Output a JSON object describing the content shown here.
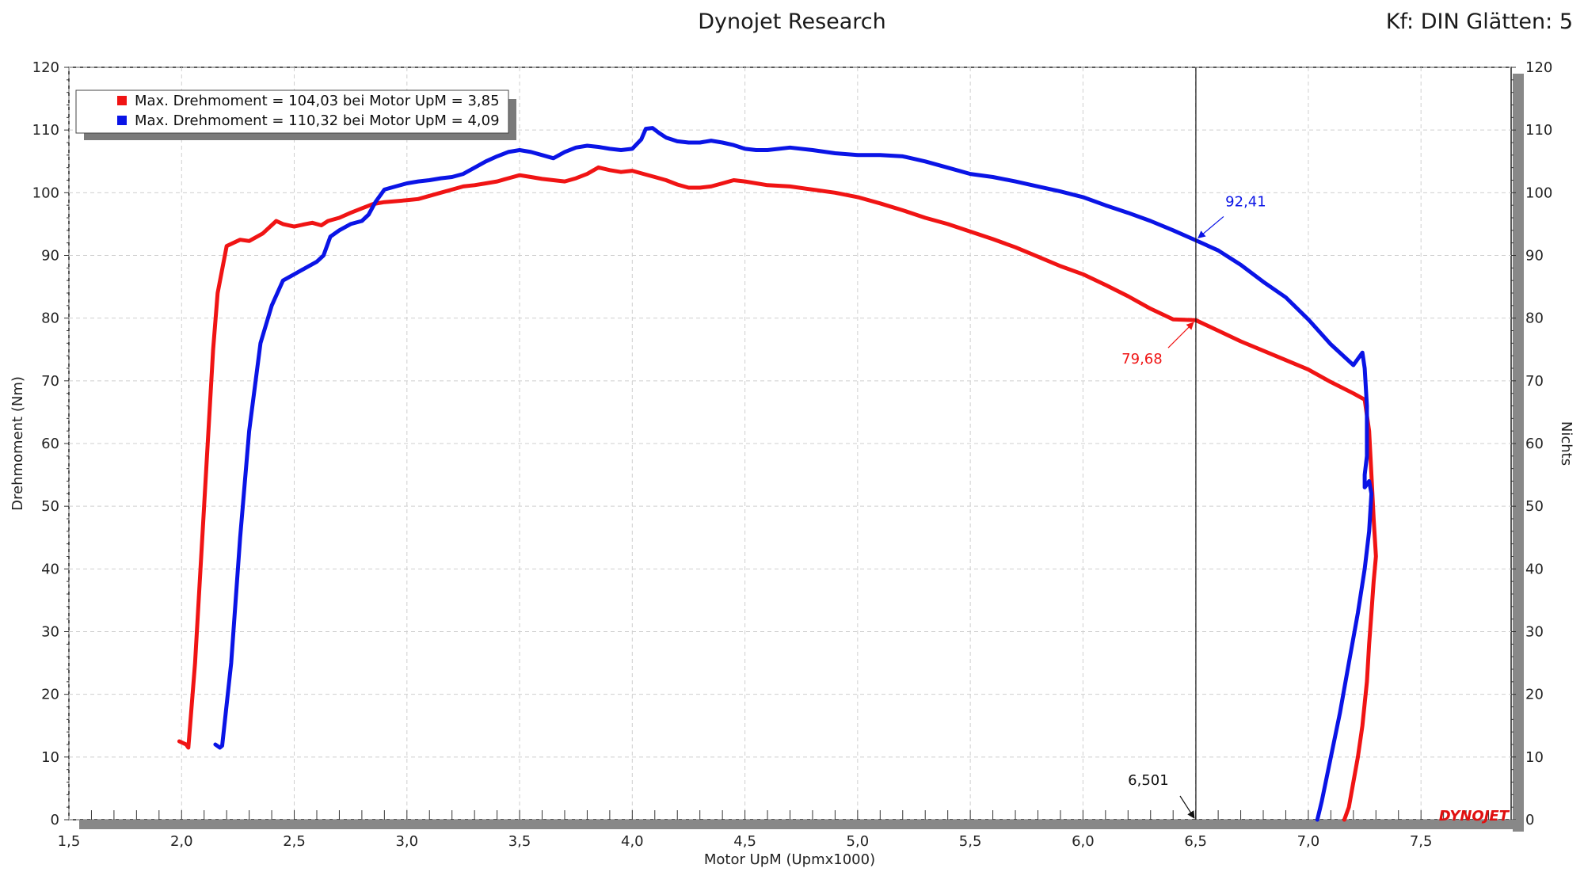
{
  "header": {
    "title": "Dynojet Research",
    "right_text": "Kf: DIN Glätten: 5"
  },
  "watermark": "DYNOJET",
  "colors": {
    "red": "#f01414",
    "blue": "#0a14e6",
    "grid": "#cfcfcf",
    "frame": "#222222"
  },
  "chart_data": {
    "type": "line",
    "title": "Dynojet Research",
    "xlabel": "Motor UpM (Upmx1000)",
    "ylabel": "Drehmoment (Nm)",
    "y2label": "Nichts",
    "xlim": [
      1.5,
      7.9
    ],
    "ylim": [
      0,
      120
    ],
    "xticks": [
      "1,5",
      "2,0",
      "2,5",
      "3,0",
      "3,5",
      "4,0",
      "4,5",
      "5,0",
      "5,5",
      "6,0",
      "6,5",
      "7,0",
      "7,5"
    ],
    "yticks": [
      "0",
      "10",
      "20",
      "30",
      "40",
      "50",
      "60",
      "70",
      "80",
      "90",
      "100",
      "110",
      "120"
    ],
    "grid": true,
    "legend_position": "top-left",
    "series": [
      {
        "name": "Max. Drehmoment = 104,03 bei Motor UpM = 3,85",
        "color": "#f01414",
        "x": [
          1.99,
          2.02,
          2.03,
          2.06,
          2.1,
          2.14,
          2.16,
          2.2,
          2.26,
          2.3,
          2.36,
          2.42,
          2.45,
          2.5,
          2.55,
          2.58,
          2.62,
          2.65,
          2.7,
          2.75,
          2.8,
          2.85,
          2.9,
          3.0,
          3.05,
          3.1,
          3.15,
          3.2,
          3.25,
          3.3,
          3.35,
          3.4,
          3.45,
          3.5,
          3.55,
          3.6,
          3.65,
          3.7,
          3.75,
          3.8,
          3.85,
          3.9,
          3.95,
          4.0,
          4.05,
          4.1,
          4.15,
          4.2,
          4.25,
          4.3,
          4.35,
          4.4,
          4.45,
          4.5,
          4.6,
          4.7,
          4.8,
          4.9,
          5.0,
          5.1,
          5.2,
          5.3,
          5.4,
          5.5,
          5.6,
          5.7,
          5.8,
          5.9,
          6.0,
          6.1,
          6.2,
          6.3,
          6.4,
          6.5,
          6.6,
          6.7,
          6.8,
          6.9,
          7.0,
          7.1,
          7.2,
          7.25,
          7.27,
          7.28,
          7.29,
          7.3,
          7.29,
          7.28,
          7.27,
          7.26,
          7.24,
          7.22,
          7.2,
          7.18,
          7.16
        ],
        "y": [
          12.5,
          12.0,
          11.5,
          25,
          50,
          75,
          84,
          91.5,
          92.5,
          92.3,
          93.5,
          95.5,
          95.0,
          94.6,
          95.0,
          95.2,
          94.8,
          95.5,
          96.0,
          96.8,
          97.5,
          98.2,
          98.5,
          98.8,
          99.0,
          99.5,
          100.0,
          100.5,
          101.0,
          101.2,
          101.5,
          101.8,
          102.3,
          102.8,
          102.5,
          102.2,
          102.0,
          101.8,
          102.3,
          103.0,
          104.03,
          103.6,
          103.3,
          103.5,
          103.0,
          102.5,
          102.0,
          101.3,
          100.8,
          100.8,
          101.0,
          101.5,
          102.0,
          101.8,
          101.2,
          101.0,
          100.5,
          100.0,
          99.3,
          98.3,
          97.2,
          96.0,
          95.0,
          93.8,
          92.6,
          91.3,
          89.8,
          88.3,
          87.0,
          85.3,
          83.5,
          81.5,
          79.8,
          79.68,
          78.0,
          76.3,
          74.8,
          73.3,
          71.8,
          69.8,
          68.0,
          67.0,
          62.0,
          55.0,
          48.0,
          42.0,
          38.0,
          33.0,
          28.0,
          22.0,
          15.0,
          10.0,
          6.0,
          2.0,
          0.0
        ]
      },
      {
        "name": "Max. Drehmoment = 110,32 bei Motor UpM = 4,09",
        "color": "#0a14e6",
        "x": [
          2.15,
          2.17,
          2.18,
          2.22,
          2.26,
          2.3,
          2.35,
          2.4,
          2.45,
          2.5,
          2.55,
          2.6,
          2.63,
          2.66,
          2.7,
          2.75,
          2.8,
          2.83,
          2.86,
          2.9,
          2.95,
          3.0,
          3.05,
          3.1,
          3.15,
          3.2,
          3.25,
          3.3,
          3.35,
          3.4,
          3.45,
          3.5,
          3.55,
          3.6,
          3.65,
          3.7,
          3.75,
          3.8,
          3.85,
          3.9,
          3.95,
          4.0,
          4.04,
          4.06,
          4.09,
          4.12,
          4.15,
          4.2,
          4.25,
          4.3,
          4.35,
          4.4,
          4.45,
          4.5,
          4.55,
          4.6,
          4.7,
          4.8,
          4.9,
          5.0,
          5.1,
          5.2,
          5.3,
          5.4,
          5.5,
          5.6,
          5.7,
          5.8,
          5.9,
          6.0,
          6.1,
          6.2,
          6.3,
          6.4,
          6.5,
          6.6,
          6.7,
          6.8,
          6.9,
          7.0,
          7.1,
          7.2,
          7.24,
          7.25,
          7.26,
          7.26,
          7.25,
          7.25,
          7.26,
          7.27,
          7.28,
          7.27,
          7.25,
          7.22,
          7.18,
          7.14,
          7.1,
          7.06,
          7.04
        ],
        "y": [
          12.0,
          11.5,
          11.8,
          25,
          45,
          62,
          76,
          82,
          86,
          87,
          88,
          89,
          90,
          93,
          94,
          95,
          95.5,
          96.5,
          98.5,
          100.5,
          101.0,
          101.5,
          101.8,
          102.0,
          102.3,
          102.5,
          103.0,
          104.0,
          105.0,
          105.8,
          106.5,
          106.8,
          106.5,
          106.0,
          105.5,
          106.5,
          107.2,
          107.5,
          107.3,
          107.0,
          106.8,
          107.0,
          108.5,
          110.2,
          110.32,
          109.5,
          108.8,
          108.2,
          108.0,
          108.0,
          108.3,
          108.0,
          107.6,
          107.0,
          106.8,
          106.8,
          107.2,
          106.8,
          106.3,
          106.0,
          106.0,
          105.8,
          105.0,
          104.0,
          103.0,
          102.5,
          101.8,
          101.0,
          100.2,
          99.3,
          98.0,
          96.8,
          95.5,
          94.0,
          92.41,
          90.8,
          88.5,
          85.8,
          83.3,
          79.8,
          75.8,
          72.5,
          74.5,
          72.0,
          66.0,
          58.0,
          55.0,
          53.0,
          53.5,
          54.0,
          52.0,
          46.0,
          40.0,
          33.0,
          25.0,
          17.0,
          10.0,
          3.0,
          0.0
        ]
      }
    ],
    "cursor": {
      "x": 6.501,
      "label": "6,501"
    },
    "annotations": [
      {
        "series": 0,
        "x": 6.501,
        "y": 79.68,
        "label": "79,68"
      },
      {
        "series": 1,
        "x": 6.501,
        "y": 92.41,
        "label": "92,41"
      }
    ]
  }
}
